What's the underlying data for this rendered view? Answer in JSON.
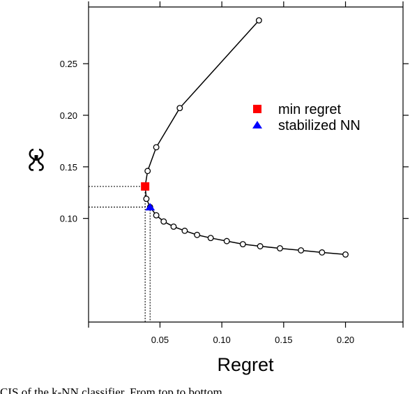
{
  "chart_data": {
    "type": "line",
    "title": "",
    "xlabel": "Regret",
    "ylabel": "",
    "xlim": [
      -0.00775,
      0.2465
    ],
    "ylim": [
      -0.0005,
      0.305
    ],
    "xticks": [
      0.05,
      0.1,
      0.15,
      0.2
    ],
    "xtick_labels": [
      "0.05",
      "0.10",
      "0.15",
      "0.20"
    ],
    "yticks": [
      0.1,
      0.15,
      0.2,
      0.25
    ],
    "ytick_labels": [
      "0.10",
      "0.15",
      "0.20",
      "0.25"
    ],
    "grid": false,
    "legend_position": "right-center",
    "series": [
      {
        "marker": "open-circle",
        "color": "#000000",
        "x": [
          0.13,
          0.066,
          0.047,
          0.04,
          0.038,
          0.039,
          0.042,
          0.047,
          0.053,
          0.061,
          0.07,
          0.08,
          0.091,
          0.104,
          0.117,
          0.131,
          0.147,
          0.164,
          0.181,
          0.2
        ],
        "y": [
          0.292,
          0.207,
          0.169,
          0.146,
          0.131,
          0.119,
          0.111,
          0.103,
          0.097,
          0.092,
          0.088,
          0.084,
          0.081,
          0.078,
          0.075,
          0.073,
          0.071,
          0.069,
          0.067,
          0.065
        ]
      }
    ],
    "highlights": [
      {
        "name": "min regret",
        "x": 0.038,
        "y": 0.131,
        "marker": "square",
        "color": "#ff0000"
      },
      {
        "name": "stabilized NN",
        "x": 0.042,
        "y": 0.111,
        "marker": "triangle",
        "color": "#0000ff"
      }
    ]
  },
  "caption_text": "CIS of the k-NN classifier. From top to bottom"
}
